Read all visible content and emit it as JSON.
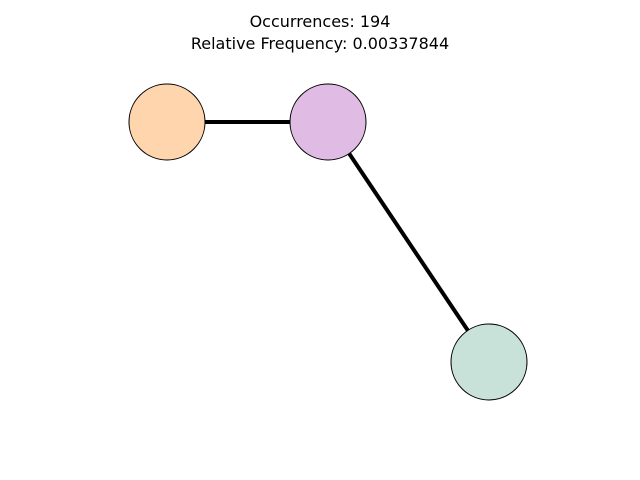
{
  "title": {
    "line1": "Occurrences: 194",
    "line2": "Relative Frequency: 0.00337844"
  },
  "graph": {
    "nodes": [
      {
        "id": "a",
        "color": "#FFD5AD"
      },
      {
        "id": "b",
        "color": "#E0BBE4"
      },
      {
        "id": "c",
        "color": "#C9E2D9"
      }
    ],
    "edges": [
      {
        "from": "a",
        "to": "b"
      },
      {
        "from": "b",
        "to": "c"
      }
    ],
    "edge_color": "#000000",
    "node_outline_color": "#000000"
  }
}
